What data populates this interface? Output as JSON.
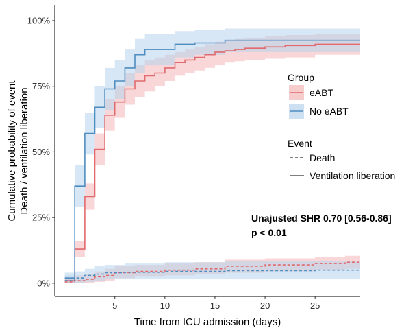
{
  "chart_data": {
    "type": "line",
    "xlabel": "Time from ICU admission (days)",
    "ylabel_lines": [
      "Cumulative probability of event",
      "Death / ventilation liberation"
    ],
    "x_ticks": [
      5,
      10,
      15,
      20,
      25
    ],
    "y_ticks": [
      0,
      0.25,
      0.5,
      0.75,
      1.0
    ],
    "y_tick_labels": [
      "0%",
      "25%",
      "50%",
      "75%",
      "100%"
    ],
    "xlim": [
      -1,
      29.5
    ],
    "ylim": [
      -0.05,
      1.06
    ],
    "legend": {
      "placement": "right",
      "group_title": "Group",
      "groups": [
        {
          "label": "eABT",
          "color": "#E06A6E",
          "band_color": "#F4B6B8"
        },
        {
          "label": "No eABT",
          "color": "#4E8DC0",
          "band_color": "#B7D3EC"
        }
      ],
      "event_title": "Event",
      "events": [
        {
          "label": "Death",
          "dash": "dashed"
        },
        {
          "label": "Ventilation liberation",
          "dash": "solid"
        }
      ]
    },
    "annotation": {
      "line1": "Unajusted SHR 0.70 [0.56-0.86]",
      "line2": "p < 0.01"
    },
    "series": [
      {
        "group": "eABT",
        "event": "Ventilation liberation",
        "style": "solid",
        "x": [
          0,
          1,
          2,
          3,
          4,
          5,
          6,
          7,
          8,
          9,
          10,
          11,
          12,
          13,
          14,
          15,
          16,
          17,
          18,
          20,
          22,
          25,
          29.5
        ],
        "y": [
          0.01,
          0.13,
          0.33,
          0.51,
          0.64,
          0.69,
          0.74,
          0.77,
          0.79,
          0.8,
          0.82,
          0.84,
          0.85,
          0.86,
          0.87,
          0.88,
          0.885,
          0.89,
          0.895,
          0.9,
          0.905,
          0.91,
          0.91
        ],
        "lower": [
          0.0,
          0.1,
          0.28,
          0.45,
          0.58,
          0.63,
          0.68,
          0.71,
          0.73,
          0.75,
          0.77,
          0.79,
          0.8,
          0.81,
          0.82,
          0.83,
          0.84,
          0.845,
          0.85,
          0.855,
          0.86,
          0.87,
          0.87
        ],
        "upper": [
          0.02,
          0.16,
          0.38,
          0.57,
          0.7,
          0.75,
          0.8,
          0.83,
          0.85,
          0.86,
          0.87,
          0.88,
          0.89,
          0.9,
          0.91,
          0.92,
          0.925,
          0.93,
          0.935,
          0.94,
          0.945,
          0.95,
          0.95
        ]
      },
      {
        "group": "No eABT",
        "event": "Ventilation liberation",
        "style": "solid",
        "x": [
          0,
          1,
          2,
          3,
          4,
          5,
          6,
          7,
          8,
          11,
          13,
          16,
          25,
          29.5
        ],
        "y": [
          0.02,
          0.37,
          0.57,
          0.67,
          0.74,
          0.77,
          0.82,
          0.87,
          0.89,
          0.91,
          0.915,
          0.925,
          0.925,
          0.925
        ],
        "lower": [
          0.0,
          0.29,
          0.49,
          0.59,
          0.66,
          0.7,
          0.75,
          0.8,
          0.83,
          0.86,
          0.87,
          0.88,
          0.88,
          0.88
        ],
        "upper": [
          0.04,
          0.45,
          0.65,
          0.75,
          0.82,
          0.85,
          0.89,
          0.93,
          0.95,
          0.96,
          0.965,
          0.97,
          0.97,
          0.97
        ]
      },
      {
        "group": "eABT",
        "event": "Death",
        "style": "dashed",
        "x": [
          0,
          1,
          2,
          3,
          4,
          5,
          7,
          10,
          13,
          16,
          20,
          25,
          28,
          29.5
        ],
        "y": [
          0.005,
          0.01,
          0.015,
          0.025,
          0.03,
          0.04,
          0.045,
          0.05,
          0.055,
          0.065,
          0.07,
          0.075,
          0.08,
          0.08
        ],
        "lower": [
          0.0,
          0.0,
          0.0,
          0.005,
          0.01,
          0.02,
          0.025,
          0.03,
          0.035,
          0.04,
          0.045,
          0.05,
          0.055,
          0.055
        ],
        "upper": [
          0.02,
          0.03,
          0.035,
          0.045,
          0.055,
          0.065,
          0.07,
          0.075,
          0.08,
          0.09,
          0.095,
          0.1,
          0.105,
          0.105
        ]
      },
      {
        "group": "No eABT",
        "event": "Death",
        "style": "dashed",
        "x": [
          0,
          1,
          2,
          3,
          4,
          6,
          10,
          16,
          25,
          29.5
        ],
        "y": [
          0.01,
          0.02,
          0.03,
          0.035,
          0.04,
          0.042,
          0.045,
          0.048,
          0.05,
          0.05
        ],
        "lower": [
          0.0,
          0.0,
          0.005,
          0.01,
          0.015,
          0.015,
          0.015,
          0.015,
          0.015,
          0.015
        ],
        "upper": [
          0.03,
          0.045,
          0.055,
          0.065,
          0.07,
          0.075,
          0.08,
          0.085,
          0.085,
          0.085
        ]
      }
    ]
  }
}
